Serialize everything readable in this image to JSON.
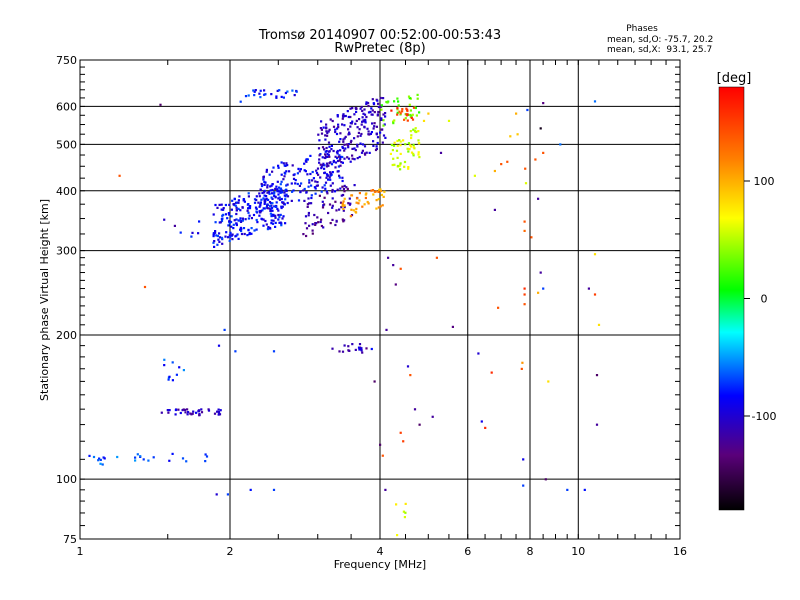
{
  "chart_data": {
    "type": "scatter",
    "title": "Tromsø 20140907 00:52:00-00:53:43",
    "subtitle": "RwPretec (8p)",
    "xlabel": "Frequency [MHz]",
    "ylabel": "Stationary phase Virtual Height [km]",
    "x_scale": "log",
    "y_scale": "log",
    "xlim": [
      1,
      16
    ],
    "ylim": [
      75,
      750
    ],
    "x_ticks": [
      1,
      2,
      4,
      6,
      8,
      10,
      16
    ],
    "y_ticks": [
      75,
      100,
      200,
      300,
      400,
      500,
      600,
      750
    ],
    "grid": true,
    "phase_stats": {
      "heading": "Phases",
      "line_o": "mean, sd,O: -75.7, 20.2",
      "line_x": "mean, sd,X:  93.1, 25.7"
    },
    "colorbar": {
      "label": "[deg]",
      "ticks": [
        100,
        0,
        -100
      ],
      "range": [
        -180,
        180
      ],
      "colors": [
        "#000000",
        "#5a007a",
        "#0000ff",
        "#00ffff",
        "#00ff00",
        "#ffff00",
        "#ff7f00",
        "#ff0000"
      ]
    },
    "clusters": [
      {
        "f": [
          1.85,
          2.6
        ],
        "h": [
          305,
          420
        ],
        "phase": -85,
        "n": 260
      },
      {
        "f": [
          2.3,
          3.4
        ],
        "h": [
          360,
          500
        ],
        "phase": -90,
        "n": 180
      },
      {
        "f": [
          3.0,
          4.1
        ],
        "h": [
          430,
          640
        ],
        "phase": -105,
        "n": 220
      },
      {
        "f": [
          2.8,
          3.6
        ],
        "h": [
          320,
          420
        ],
        "phase": -120,
        "n": 70
      },
      {
        "f": [
          4.0,
          4.8
        ],
        "h": [
          540,
          650
        ],
        "phase": 30,
        "n": 35
      },
      {
        "f": [
          4.2,
          4.8
        ],
        "h": [
          420,
          550
        ],
        "phase": 55,
        "n": 55
      },
      {
        "f": [
          3.3,
          4.1
        ],
        "h": [
          345,
          410
        ],
        "phase": 110,
        "n": 45
      },
      {
        "f": [
          4.2,
          4.7
        ],
        "h": [
          560,
          600
        ],
        "phase": 150,
        "n": 18
      },
      {
        "f": [
          2.15,
          2.75
        ],
        "h": [
          625,
          650
        ],
        "phase": -80,
        "n": 25
      },
      {
        "f": [
          1.45,
          1.92
        ],
        "h": [
          136,
          140
        ],
        "phase": -105,
        "n": 40
      },
      {
        "f": [
          1.0,
          1.95
        ],
        "h": [
          109,
          113
        ],
        "phase": -70,
        "n": 20
      },
      {
        "f": [
          1.08,
          1.12
        ],
        "h": [
          107,
          111
        ],
        "phase": -70,
        "n": 5
      },
      {
        "f": [
          1.45,
          1.62
        ],
        "h": [
          160,
          180
        ],
        "phase": -70,
        "n": 10
      },
      {
        "f": [
          3.2,
          3.8
        ],
        "h": [
          183,
          192
        ],
        "phase": -110,
        "n": 18
      },
      {
        "f": [
          4.3,
          4.6
        ],
        "h": [
          75,
          90
        ],
        "phase": 60,
        "n": 6
      },
      {
        "f": [
          1.45,
          1.75
        ],
        "h": [
          320,
          350
        ],
        "phase": -85,
        "n": 6
      }
    ],
    "points": [
      {
        "x": 1.45,
        "y": 605,
        "phase": -140
      },
      {
        "x": 1.2,
        "y": 430,
        "phase": 140
      },
      {
        "x": 1.35,
        "y": 252,
        "phase": 140
      },
      {
        "x": 1.55,
        "y": 338,
        "phase": -120
      },
      {
        "x": 1.9,
        "y": 190,
        "phase": -90
      },
      {
        "x": 1.95,
        "y": 205,
        "phase": -70
      },
      {
        "x": 2.05,
        "y": 185,
        "phase": -70
      },
      {
        "x": 2.2,
        "y": 95,
        "phase": -80
      },
      {
        "x": 1.88,
        "y": 93,
        "phase": -100
      },
      {
        "x": 1.98,
        "y": 93,
        "phase": -70
      },
      {
        "x": 2.45,
        "y": 95,
        "phase": -70
      },
      {
        "x": 2.45,
        "y": 185,
        "phase": -70
      },
      {
        "x": 2.1,
        "y": 614,
        "phase": -70
      },
      {
        "x": 3.85,
        "y": 187,
        "phase": -80
      },
      {
        "x": 3.9,
        "y": 160,
        "phase": -140
      },
      {
        "x": 4.0,
        "y": 118,
        "phase": -140
      },
      {
        "x": 4.05,
        "y": 112,
        "phase": 140
      },
      {
        "x": 4.1,
        "y": 95,
        "phase": -120
      },
      {
        "x": 4.12,
        "y": 205,
        "phase": -120
      },
      {
        "x": 4.15,
        "y": 290,
        "phase": -120
      },
      {
        "x": 4.25,
        "y": 280,
        "phase": -120
      },
      {
        "x": 4.3,
        "y": 255,
        "phase": -130
      },
      {
        "x": 4.4,
        "y": 275,
        "phase": 140
      },
      {
        "x": 4.4,
        "y": 125,
        "phase": 150
      },
      {
        "x": 4.45,
        "y": 120,
        "phase": 150
      },
      {
        "x": 4.7,
        "y": 140,
        "phase": -120
      },
      {
        "x": 4.8,
        "y": 130,
        "phase": -140
      },
      {
        "x": 5.1,
        "y": 135,
        "phase": -120
      },
      {
        "x": 5.0,
        "y": 580,
        "phase": 90
      },
      {
        "x": 4.9,
        "y": 560,
        "phase": 80
      },
      {
        "x": 5.3,
        "y": 480,
        "phase": -120
      },
      {
        "x": 5.6,
        "y": 208,
        "phase": -130
      },
      {
        "x": 6.2,
        "y": 430,
        "phase": 60
      },
      {
        "x": 6.3,
        "y": 183,
        "phase": -100
      },
      {
        "x": 6.4,
        "y": 132,
        "phase": -90
      },
      {
        "x": 6.5,
        "y": 128,
        "phase": 160
      },
      {
        "x": 6.7,
        "y": 167,
        "phase": 160
      },
      {
        "x": 6.9,
        "y": 228,
        "phase": 140
      },
      {
        "x": 6.8,
        "y": 440,
        "phase": 100
      },
      {
        "x": 6.8,
        "y": 365,
        "phase": -120
      },
      {
        "x": 7.0,
        "y": 455,
        "phase": 140
      },
      {
        "x": 7.2,
        "y": 460,
        "phase": 140
      },
      {
        "x": 7.3,
        "y": 520,
        "phase": 90
      },
      {
        "x": 7.5,
        "y": 580,
        "phase": 100
      },
      {
        "x": 7.55,
        "y": 525,
        "phase": 90
      },
      {
        "x": 7.7,
        "y": 170,
        "phase": 140
      },
      {
        "x": 7.72,
        "y": 175,
        "phase": 110
      },
      {
        "x": 7.75,
        "y": 110,
        "phase": -90
      },
      {
        "x": 7.75,
        "y": 97,
        "phase": -70
      },
      {
        "x": 7.8,
        "y": 345,
        "phase": 140
      },
      {
        "x": 7.8,
        "y": 330,
        "phase": 130
      },
      {
        "x": 7.8,
        "y": 250,
        "phase": 160
      },
      {
        "x": 7.8,
        "y": 243,
        "phase": 150
      },
      {
        "x": 7.8,
        "y": 232,
        "phase": 140
      },
      {
        "x": 7.82,
        "y": 445,
        "phase": 140
      },
      {
        "x": 7.85,
        "y": 415,
        "phase": 60
      },
      {
        "x": 7.9,
        "y": 590,
        "phase": -70
      },
      {
        "x": 8.05,
        "y": 320,
        "phase": 140
      },
      {
        "x": 8.2,
        "y": 465,
        "phase": 140
      },
      {
        "x": 8.3,
        "y": 385,
        "phase": -120
      },
      {
        "x": 8.3,
        "y": 245,
        "phase": 100
      },
      {
        "x": 8.4,
        "y": 270,
        "phase": -120
      },
      {
        "x": 8.4,
        "y": 540,
        "phase": -170
      },
      {
        "x": 8.5,
        "y": 480,
        "phase": 140
      },
      {
        "x": 8.5,
        "y": 250,
        "phase": -70
      },
      {
        "x": 8.6,
        "y": 100,
        "phase": -140
      },
      {
        "x": 8.7,
        "y": 160,
        "phase": 80
      },
      {
        "x": 9.2,
        "y": 500,
        "phase": -60
      },
      {
        "x": 9.5,
        "y": 95,
        "phase": -70
      },
      {
        "x": 8.5,
        "y": 610,
        "phase": -130
      },
      {
        "x": 10.5,
        "y": 250,
        "phase": -120
      },
      {
        "x": 10.8,
        "y": 243,
        "phase": 150
      },
      {
        "x": 10.8,
        "y": 295,
        "phase": 80
      },
      {
        "x": 11.0,
        "y": 210,
        "phase": 80
      },
      {
        "x": 10.8,
        "y": 615,
        "phase": -60
      },
      {
        "x": 10.9,
        "y": 165,
        "phase": -140
      },
      {
        "x": 10.9,
        "y": 130,
        "phase": -120
      },
      {
        "x": 10.3,
        "y": 95,
        "phase": -80
      },
      {
        "x": 5.5,
        "y": 560,
        "phase": 60
      },
      {
        "x": 5.2,
        "y": 290,
        "phase": 140
      },
      {
        "x": 4.6,
        "y": 165,
        "phase": 140
      },
      {
        "x": 4.55,
        "y": 172,
        "phase": -100
      }
    ]
  }
}
